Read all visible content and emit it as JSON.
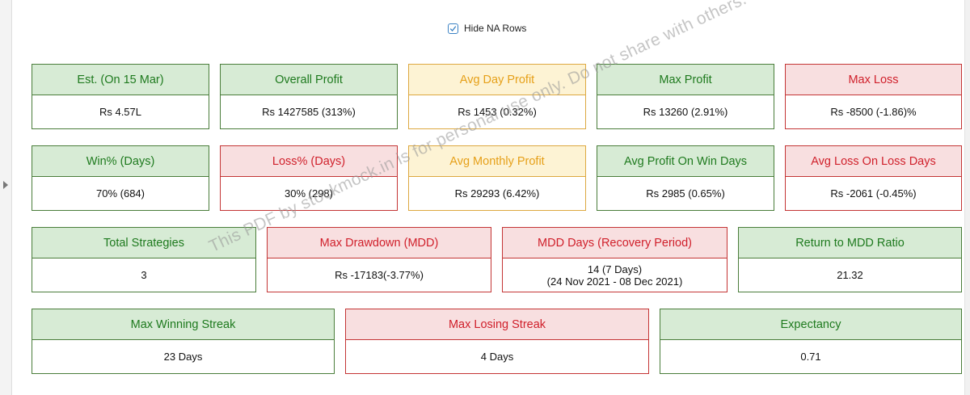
{
  "toggle": {
    "label": "Hide NA Rows",
    "checked": true
  },
  "rows": [
    [
      {
        "title": "Est.  (On 15 Mar)",
        "value": "Rs 4.57L",
        "color": "green"
      },
      {
        "title": "Overall Profit",
        "value": "Rs 1427585 (313%)",
        "color": "green"
      },
      {
        "title": "Avg Day Profit",
        "value": "Rs 1453 (0.32%)",
        "color": "yellow"
      },
      {
        "title": "Max Profit",
        "value": "Rs 13260 (2.91%)",
        "color": "green"
      },
      {
        "title": "Max Loss",
        "value": "Rs -8500 (-1.86)%",
        "color": "red"
      }
    ],
    [
      {
        "title": "Win% (Days)",
        "value": "70% (684)",
        "color": "green"
      },
      {
        "title": "Loss% (Days)",
        "value": "30% (298)",
        "color": "red"
      },
      {
        "title": "Avg Monthly Profit",
        "value": "Rs 29293 (6.42%)",
        "color": "yellow"
      },
      {
        "title": "Avg Profit On Win Days",
        "value": "Rs 2985 (0.65%)",
        "color": "green"
      },
      {
        "title": "Avg Loss On Loss Days",
        "value": "Rs -2061 (-0.45%)",
        "color": "red"
      }
    ],
    [
      {
        "title": "Total Strategies",
        "value": "3",
        "color": "green"
      },
      {
        "title": "Max Drawdown (MDD)",
        "value": "Rs -17183(-3.77%)",
        "color": "red"
      },
      {
        "title": "MDD Days (Recovery Period)",
        "value": "14 (7 Days)",
        "value2": "(24 Nov 2021 - 08 Dec 2021)",
        "color": "red"
      },
      {
        "title": "Return to MDD Ratio",
        "value": "21.32",
        "color": "green"
      }
    ],
    [
      {
        "title": "Max Winning Streak",
        "value": "23 Days",
        "color": "green"
      },
      {
        "title": "Max Losing Streak",
        "value": "4 Days",
        "color": "red"
      },
      {
        "title": "Expectancy",
        "value": "0.71",
        "color": "green"
      }
    ]
  ],
  "watermark": "This PDF by stockmock.in is for personal use only. Do not share with others.",
  "colors": {
    "green": "#1e7a1e",
    "red": "#d0202b",
    "yellow": "#e6a019"
  }
}
